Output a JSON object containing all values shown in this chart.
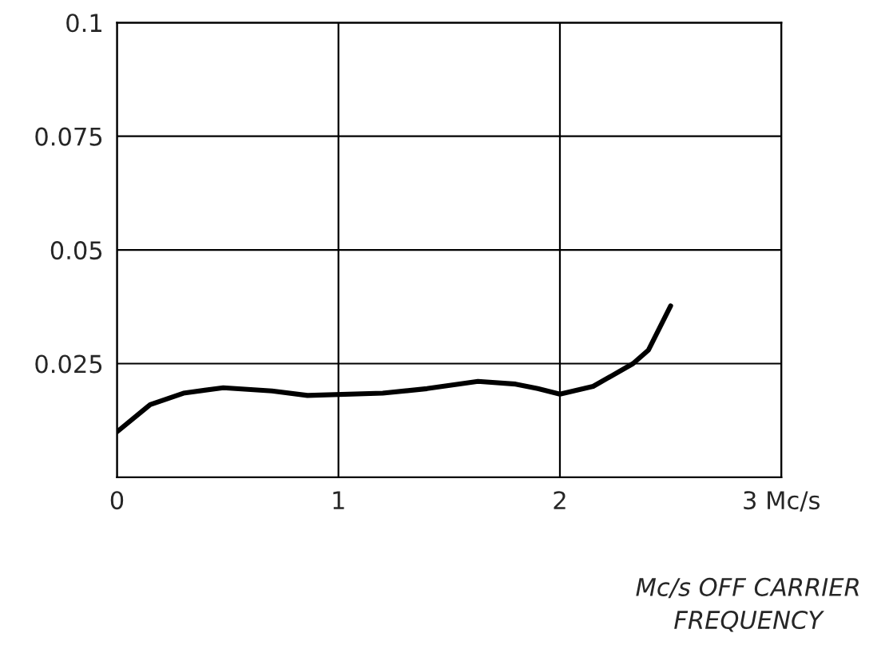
{
  "chart_data": {
    "type": "line",
    "xlabel": "Mc/s OFF CARRIER\nFREQUENCY",
    "x": [
      0,
      0.15,
      0.3,
      0.48,
      0.7,
      0.86,
      1.2,
      1.4,
      1.63,
      1.8,
      1.9,
      2.0,
      2.15,
      2.33,
      2.4,
      2.5
    ],
    "series": [
      {
        "color": "#000000",
        "values": [
          0.01,
          0.016,
          0.0185,
          0.0197,
          0.019,
          0.018,
          0.0185,
          0.0195,
          0.0211,
          0.0205,
          0.0195,
          0.0183,
          0.02,
          0.025,
          0.028,
          0.0377
        ]
      }
    ],
    "xlim": [
      0,
      3
    ],
    "ylim": [
      0,
      0.1
    ],
    "xticks": [
      0,
      1,
      2,
      {
        "value": 3,
        "label": "3 Mc/s"
      }
    ],
    "yticks": [
      0.025,
      0.05,
      0.075,
      0.1
    ],
    "grid": true,
    "marker": "none",
    "line_style": "solid"
  }
}
